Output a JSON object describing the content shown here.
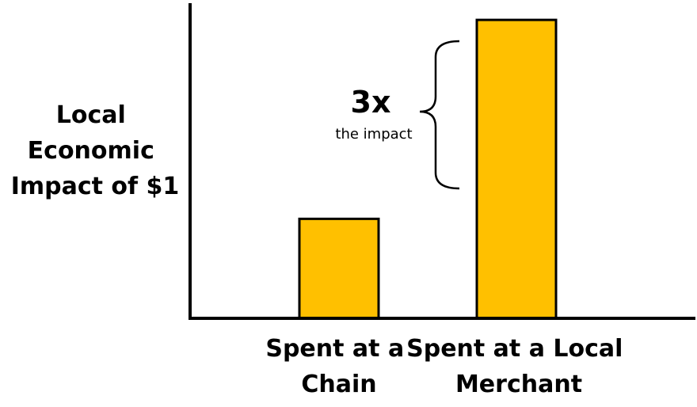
{
  "chart_data": {
    "type": "bar",
    "title": "",
    "ylabel": [
      "Local",
      "Economic",
      "Impact of $1"
    ],
    "categories": [
      [
        "Spent at a",
        "Chain"
      ],
      [
        "Spent at a Local",
        "Merchant"
      ]
    ],
    "values": [
      1,
      3
    ],
    "ylim": [
      0,
      3.2
    ],
    "grid": false,
    "bar_color": "#FFC000",
    "bar_edge_color": "#000000",
    "annotation": {
      "big": "3x",
      "small": "the impact"
    }
  }
}
